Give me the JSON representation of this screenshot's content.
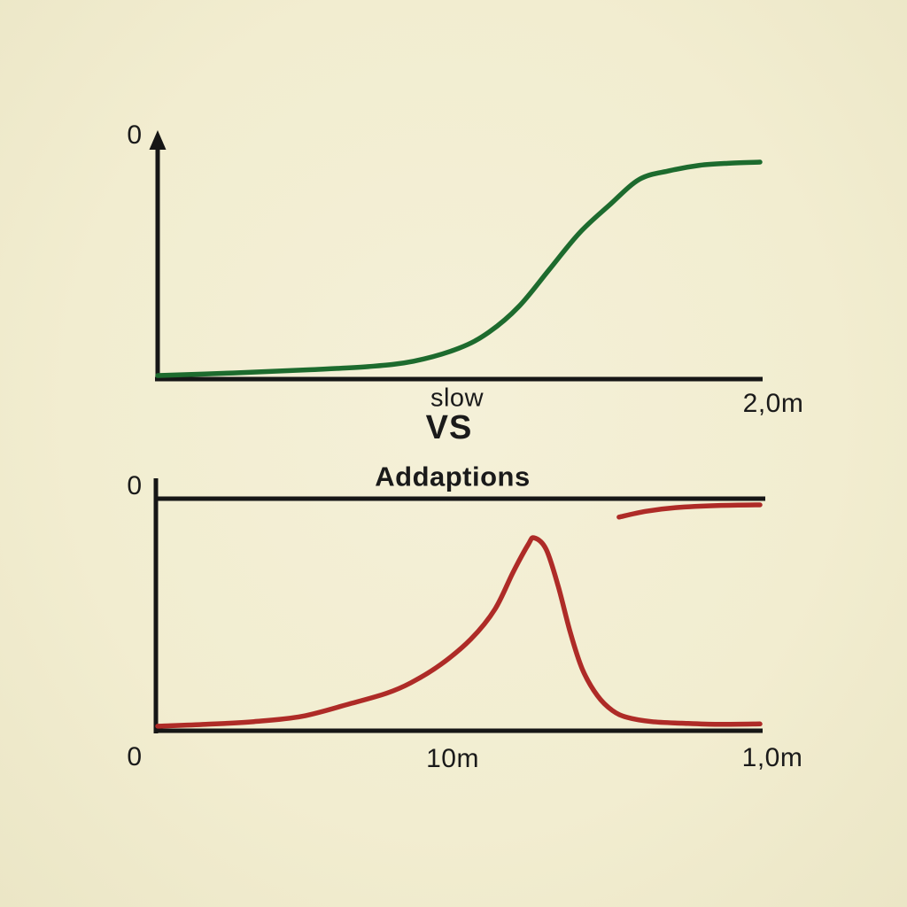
{
  "colors": {
    "background": "#f2edd0",
    "axis": "#161616",
    "text": "#1a1a1a",
    "green_curve": "#1d6b2e",
    "red_curve": "#ae2b27"
  },
  "vs_label": "VS",
  "chart_data": [
    {
      "id": "top-chart",
      "type": "line",
      "title": "",
      "xlabel": "slow",
      "ylabel": "",
      "y_axis_top_label": "0",
      "x_max_tick_label": "2,0m",
      "x_range": [
        0,
        2.0
      ],
      "y_range": [
        0,
        1
      ],
      "grid": false,
      "legend": false,
      "line_color": "#1d6b2e",
      "series": [
        {
          "name": "slow-sigmoid-curve",
          "x": [
            0,
            0.25,
            0.5,
            0.7,
            0.85,
            1.0,
            1.1,
            1.2,
            1.3,
            1.4,
            1.5,
            1.6,
            1.7,
            1.8,
            1.9,
            2.0
          ],
          "y": [
            0.008,
            0.02,
            0.035,
            0.05,
            0.075,
            0.135,
            0.21,
            0.33,
            0.5,
            0.67,
            0.8,
            0.92,
            0.96,
            0.985,
            0.995,
            1.0
          ]
        }
      ]
    },
    {
      "id": "bottom-chart",
      "type": "line",
      "title": "Addaptions",
      "xlabel": "",
      "ylabel": "",
      "y_axis_top_label": "0",
      "x_ticks": [
        "0",
        "10m",
        "1,0m"
      ],
      "x_range": [
        0,
        1.0
      ],
      "y_range": [
        0,
        1
      ],
      "grid": false,
      "legend": false,
      "has_ceiling_line": true,
      "line_color": "#ae2b27",
      "series": [
        {
          "name": "adaptation-peak-curve",
          "x": [
            0,
            0.08,
            0.16,
            0.24,
            0.32,
            0.38,
            0.42,
            0.47,
            0.52,
            0.56,
            0.59,
            0.615,
            0.625,
            0.645,
            0.665,
            0.685,
            0.705,
            0.73,
            0.755,
            0.78,
            0.82,
            0.87,
            0.93,
            1.0
          ],
          "y": [
            0.012,
            0.02,
            0.032,
            0.055,
            0.11,
            0.155,
            0.2,
            0.28,
            0.39,
            0.52,
            0.68,
            0.8,
            0.83,
            0.78,
            0.62,
            0.42,
            0.26,
            0.145,
            0.08,
            0.05,
            0.032,
            0.025,
            0.02,
            0.022
          ]
        },
        {
          "name": "asymptote-segment",
          "x": [
            0.766,
            0.81,
            0.86,
            0.93,
            1.0
          ],
          "y": [
            0.92,
            0.945,
            0.961,
            0.97,
            0.973
          ]
        }
      ]
    }
  ]
}
